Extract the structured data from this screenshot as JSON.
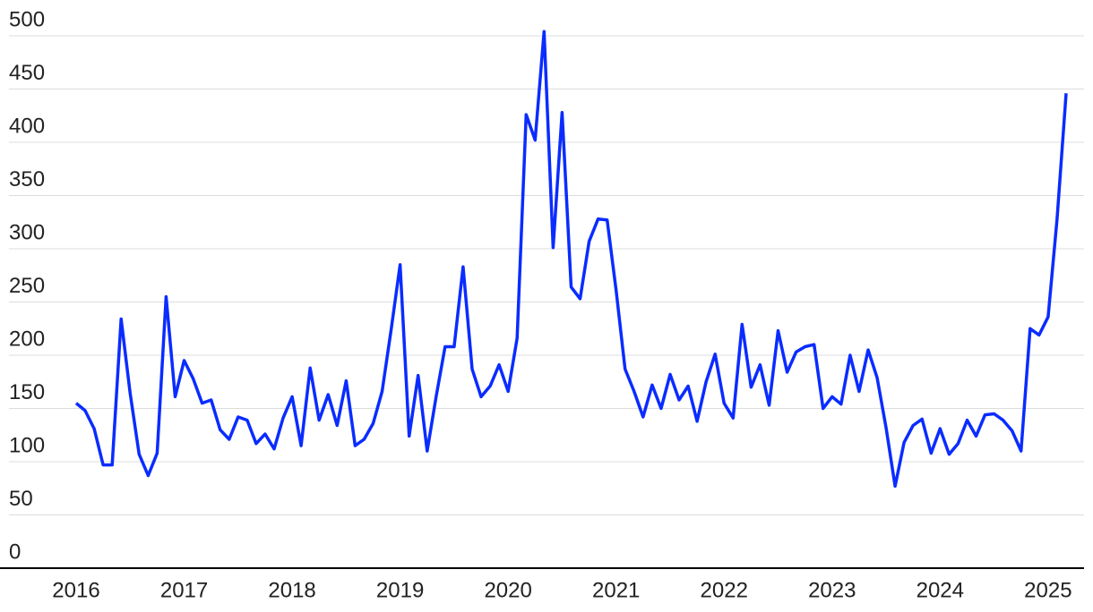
{
  "chart_data": {
    "type": "line",
    "categories": [
      "2016",
      null,
      null,
      null,
      null,
      null,
      null,
      null,
      null,
      null,
      null,
      null,
      "2017",
      null,
      null,
      null,
      null,
      null,
      null,
      null,
      null,
      null,
      null,
      null,
      "2018",
      null,
      null,
      null,
      null,
      null,
      null,
      null,
      null,
      null,
      null,
      null,
      "2019",
      null,
      null,
      null,
      null,
      null,
      null,
      null,
      null,
      null,
      null,
      null,
      "2020",
      null,
      null,
      null,
      null,
      null,
      null,
      null,
      null,
      null,
      null,
      null,
      "2021",
      null,
      null,
      null,
      null,
      null,
      null,
      null,
      null,
      null,
      null,
      null,
      "2022",
      null,
      null,
      null,
      null,
      null,
      null,
      null,
      null,
      null,
      null,
      null,
      "2023",
      null,
      null,
      null,
      null,
      null,
      null,
      null,
      null,
      null,
      null,
      null,
      "2024",
      null,
      null,
      null,
      null,
      null,
      null,
      null,
      null,
      null,
      null,
      null,
      "2025",
      null,
      null
    ],
    "series": [
      {
        "color": "#0a2cff",
        "values": [
          155,
          148,
          131,
          97,
          97,
          234,
          164,
          107,
          87,
          108,
          255,
          161,
          195,
          178,
          155,
          158,
          130,
          121,
          142,
          139,
          117,
          126,
          112,
          141,
          161,
          115,
          188,
          139,
          163,
          134,
          176,
          115,
          121,
          136,
          166,
          224,
          285,
          124,
          181,
          110,
          161,
          208,
          208,
          283,
          187,
          161,
          171,
          191,
          166,
          216,
          426,
          402,
          504,
          301,
          428,
          264,
          253,
          307,
          328,
          327,
          261,
          187,
          166,
          142,
          172,
          150,
          182,
          158,
          171,
          138,
          175,
          201,
          155,
          141,
          229,
          170,
          191,
          153,
          223,
          184,
          203,
          208,
          210,
          150,
          161,
          154,
          200,
          166,
          205,
          179,
          132,
          77,
          118,
          134,
          140,
          108,
          131,
          107,
          117,
          139,
          124,
          144,
          145,
          139,
          129,
          110,
          225,
          219,
          236,
          328,
          446
        ]
      }
    ],
    "ylim": [
      0,
      500
    ],
    "yticks": [
      0,
      50,
      100,
      150,
      200,
      250,
      300,
      350,
      400,
      450,
      500
    ],
    "grid": true
  }
}
